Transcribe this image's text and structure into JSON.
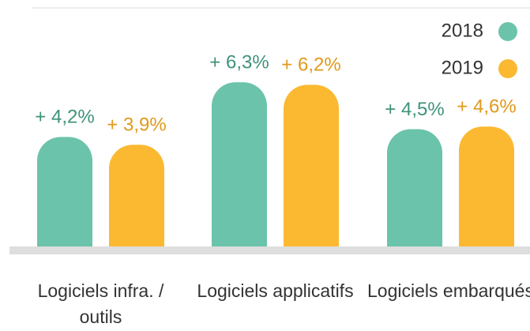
{
  "chart_data": {
    "type": "bar",
    "categories": [
      "Logiciels infra. / outils",
      "Logiciels applicatifs",
      "Logiciels embarqués"
    ],
    "series": [
      {
        "name": "2018",
        "color": "#6cc3ab",
        "values": [
          4.2,
          6.3,
          4.5
        ],
        "value_labels": [
          "+ 4,2%",
          "+ 6,3%",
          "+ 4,5%"
        ]
      },
      {
        "name": "2019",
        "color": "#fbb932",
        "values": [
          3.9,
          6.2,
          4.6
        ],
        "value_labels": [
          "+ 3,9%",
          "+ 6,2%",
          "+ 4,6%"
        ]
      }
    ],
    "legend": "top-right"
  }
}
